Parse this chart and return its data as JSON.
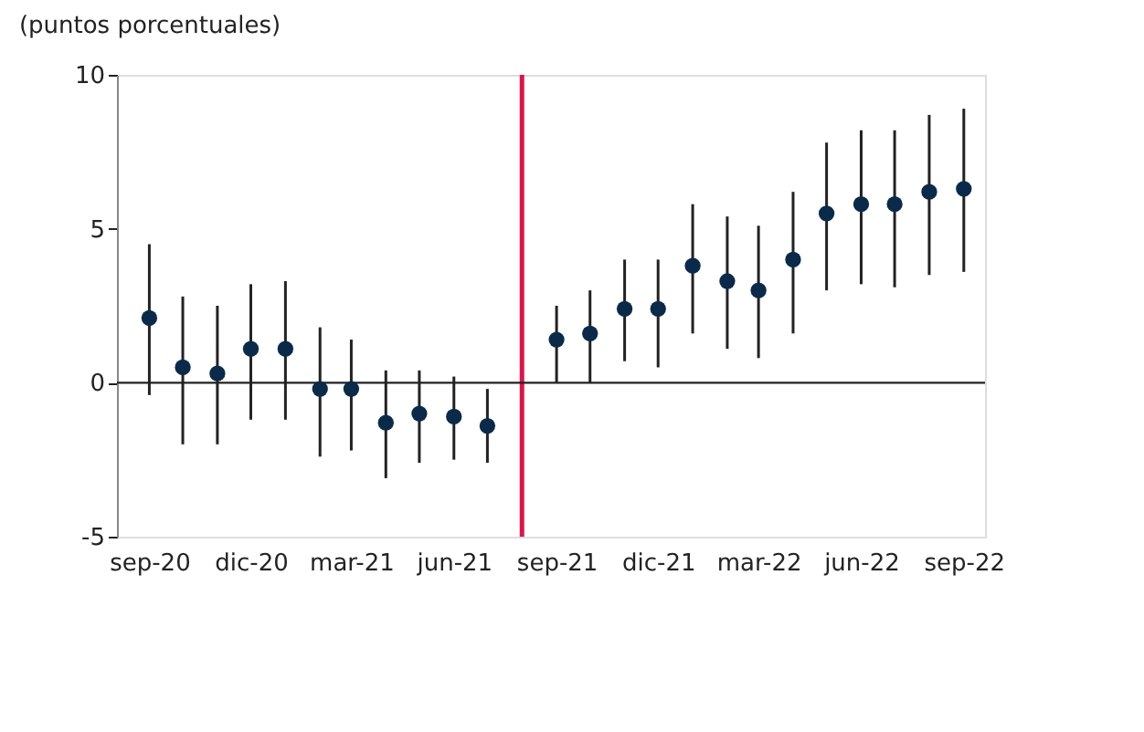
{
  "chart_data": {
    "type": "scatter",
    "ylabel": "(puntos porcentuales)",
    "x": [
      "2020-09",
      "2020-10",
      "2020-11",
      "2020-12",
      "2021-01",
      "2021-02",
      "2021-03",
      "2021-04",
      "2021-05",
      "2021-06",
      "2021-07",
      "2021-09",
      "2021-10",
      "2021-11",
      "2021-12",
      "2022-01",
      "2022-02",
      "2022-03",
      "2022-04",
      "2022-05",
      "2022-06",
      "2022-07",
      "2022-08",
      "2022-09"
    ],
    "series": [
      {
        "color": "#0b2a4a",
        "values": [
          2.1,
          0.5,
          0.3,
          1.1,
          1.1,
          -0.2,
          -0.2,
          -1.3,
          -1.0,
          -1.1,
          -1.4,
          1.4,
          1.6,
          2.4,
          2.4,
          3.8,
          3.3,
          3.0,
          4.0,
          5.5,
          5.8,
          5.8,
          6.2,
          6.3
        ],
        "errors": [
          [
            -0.4,
            4.5
          ],
          [
            -2.0,
            2.8
          ],
          [
            -2.0,
            2.5
          ],
          [
            -1.2,
            3.2
          ],
          [
            -1.2,
            3.3
          ],
          [
            -2.4,
            1.8
          ],
          [
            -2.2,
            1.4
          ],
          [
            -3.1,
            0.4
          ],
          [
            -2.6,
            0.4
          ],
          [
            -2.5,
            0.2
          ],
          [
            -2.6,
            -0.2
          ],
          [
            0.0,
            2.5
          ],
          [
            0.0,
            3.0
          ],
          [
            0.7,
            4.0
          ],
          [
            0.5,
            4.0
          ],
          [
            1.6,
            5.8
          ],
          [
            1.1,
            5.4
          ],
          [
            0.8,
            5.1
          ],
          [
            1.6,
            6.2
          ],
          [
            3.0,
            7.8
          ],
          [
            3.2,
            8.2
          ],
          [
            3.1,
            8.2
          ],
          [
            3.5,
            8.7
          ],
          [
            3.6,
            8.9
          ]
        ]
      }
    ],
    "marker": "circle",
    "xlim": [
      "2020-08-03",
      "2022-09-20"
    ],
    "xticks": [
      {
        "value": "2020-09",
        "label": "sep-20"
      },
      {
        "value": "2020-12",
        "label": "dic-20"
      },
      {
        "value": "2021-03",
        "label": "mar-21"
      },
      {
        "value": "2021-06",
        "label": "jun-21"
      },
      {
        "value": "2021-09",
        "label": "sep-21"
      },
      {
        "value": "2021-12",
        "label": "dic-21"
      },
      {
        "value": "2022-03",
        "label": "mar-22"
      },
      {
        "value": "2022-06",
        "label": "jun-22"
      },
      {
        "value": "2022-09",
        "label": "sep-22"
      }
    ],
    "ylim": [
      -5,
      10
    ],
    "yticks": [
      -5,
      0,
      5,
      10
    ],
    "ref_lines": [
      {
        "axis": "x",
        "value": "2021-08",
        "color": "#d7174b"
      },
      {
        "axis": "y",
        "value": 0,
        "color": "#222222"
      }
    ]
  }
}
